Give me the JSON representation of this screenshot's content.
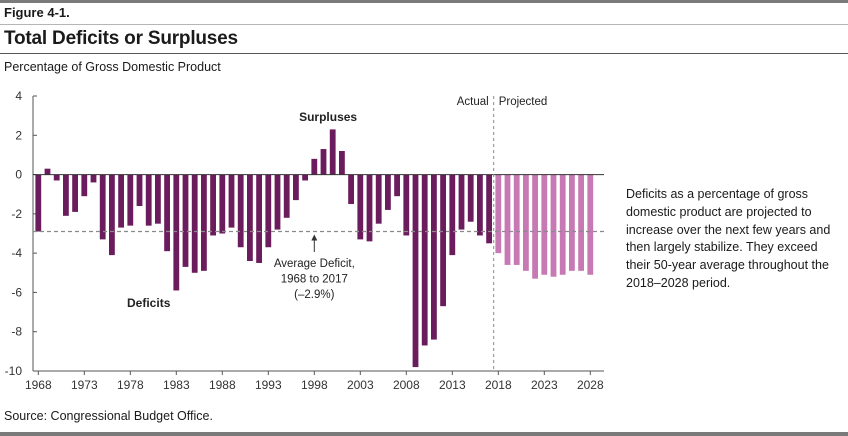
{
  "figure_label": "Figure 4-1.",
  "title": "Total Deficits or Surpluses",
  "subtitle": "Percentage of Gross Domestic Product",
  "source": "Source: Congressional Budget Office.",
  "note": "Deficits as a percentage of gross domestic product are projected to increase over the next few years and then largely stabilize. They exceed their 50-year average throughout the 2018–2028 period.",
  "colors": {
    "actual": "#6b1c5c",
    "projected": "#c679b4",
    "average_line": "#8a8a8a"
  },
  "chart_data": {
    "type": "bar",
    "title": "Total Deficits or Surpluses",
    "ylabel": "Percentage of Gross Domestic Product",
    "ylim": [
      -10,
      4
    ],
    "yticks": [
      4,
      2,
      0,
      -2,
      -4,
      -6,
      -8,
      -10
    ],
    "ytick_labels": [
      "4",
      "2",
      "0",
      "-2",
      "-4",
      "-6",
      "-8",
      "-10"
    ],
    "xticks": [
      1968,
      1973,
      1978,
      1983,
      1988,
      1993,
      1998,
      2003,
      2008,
      2013,
      2018,
      2023,
      2028
    ],
    "xtick_labels": [
      "1968",
      "1973",
      "1978",
      "1983",
      "1988",
      "1993",
      "1998",
      "2003",
      "2008",
      "2013",
      "2018",
      "2023",
      "2028"
    ],
    "series": [
      {
        "name": "Actual",
        "x": [
          1968,
          1969,
          1970,
          1971,
          1972,
          1973,
          1974,
          1975,
          1976,
          1977,
          1978,
          1979,
          1980,
          1981,
          1982,
          1983,
          1984,
          1985,
          1986,
          1987,
          1988,
          1989,
          1990,
          1991,
          1992,
          1993,
          1994,
          1995,
          1996,
          1997,
          1998,
          1999,
          2000,
          2001,
          2002,
          2003,
          2004,
          2005,
          2006,
          2007,
          2008,
          2009,
          2010,
          2011,
          2012,
          2013,
          2014,
          2015,
          2016,
          2017
        ],
        "values": [
          -2.9,
          0.3,
          -0.3,
          -2.1,
          -1.9,
          -1.1,
          -0.4,
          -3.3,
          -4.1,
          -2.7,
          -2.6,
          -1.6,
          -2.6,
          -2.5,
          -3.9,
          -5.9,
          -4.7,
          -5.0,
          -4.9,
          -3.1,
          -3.0,
          -2.7,
          -3.7,
          -4.4,
          -4.5,
          -3.7,
          -2.8,
          -2.2,
          -1.3,
          -0.3,
          0.8,
          1.3,
          2.3,
          1.2,
          -1.5,
          -3.3,
          -3.4,
          -2.5,
          -1.8,
          -1.1,
          -3.1,
          -9.8,
          -8.7,
          -8.4,
          -6.7,
          -4.1,
          -2.8,
          -2.4,
          -3.1,
          -3.5
        ]
      },
      {
        "name": "Projected",
        "x": [
          2018,
          2019,
          2020,
          2021,
          2022,
          2023,
          2024,
          2025,
          2026,
          2027,
          2028
        ],
        "values": [
          -4.0,
          -4.6,
          -4.6,
          -4.9,
          -5.3,
          -5.1,
          -5.2,
          -5.1,
          -4.9,
          -4.9,
          -5.1
        ]
      }
    ],
    "average_line": {
      "value": -2.9,
      "label_lines": [
        "Average Deficit,",
        "1968 to 2017",
        "(–2.9%)"
      ]
    },
    "annotations": {
      "surpluses": "Surpluses",
      "deficits": "Deficits",
      "actual": "Actual",
      "projected": "Projected"
    }
  }
}
